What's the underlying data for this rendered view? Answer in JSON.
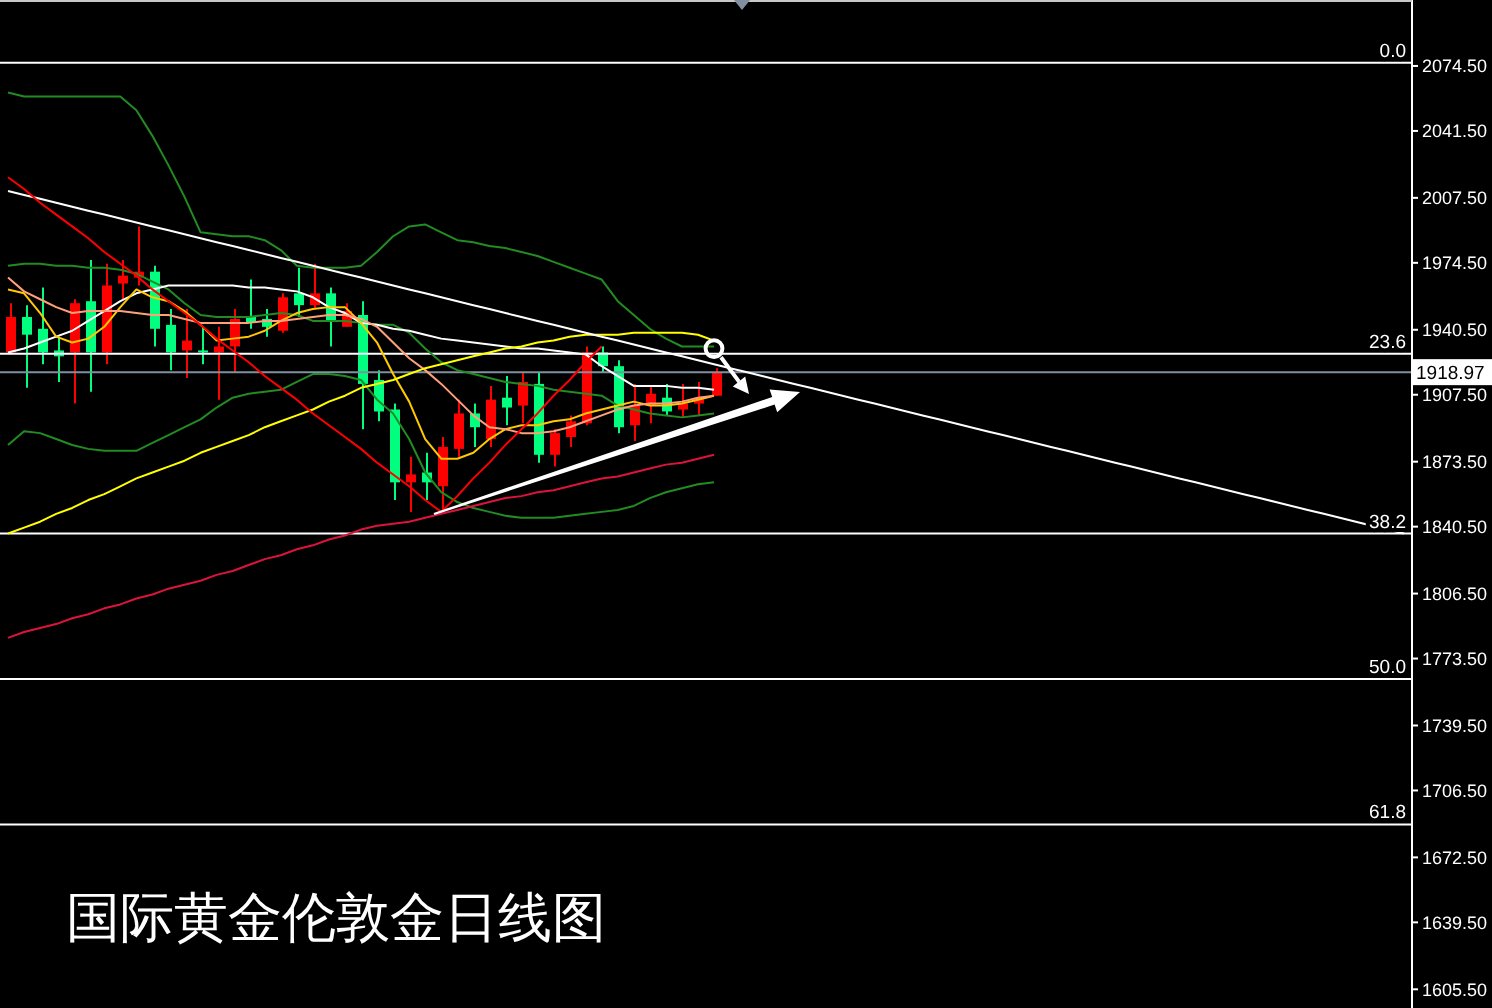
{
  "chart_data": {
    "type": "candlestick",
    "title": "国际黄金伦敦金日线图",
    "categories": [
      null,
      null,
      null,
      null,
      null,
      null,
      null,
      null,
      null,
      null,
      null,
      null,
      null,
      null,
      null,
      null,
      null,
      null,
      null,
      null,
      null,
      null,
      null,
      null,
      null,
      null,
      null,
      null,
      null,
      null,
      null,
      null,
      null,
      null,
      null,
      null,
      null,
      null,
      null,
      null,
      null,
      null,
      null,
      null,
      null,
      null,
      null,
      null,
      null,
      null,
      null,
      null,
      null,
      null,
      null,
      null,
      null,
      null,
      null,
      null,
      null,
      null,
      null,
      null,
      null,
      null,
      null,
      null,
      null,
      null,
      null,
      null,
      null,
      null,
      null,
      null,
      null,
      null,
      null,
      null,
      null,
      null,
      null,
      null,
      null,
      null,
      null,
      null
    ],
    "ohlc": [
      [
        1929,
        1954,
        1928,
        1947
      ],
      [
        1947,
        1953,
        1911,
        1938
      ],
      [
        1941,
        1962,
        1923,
        1929
      ],
      [
        1930,
        1937,
        1914,
        1927
      ],
      [
        1929,
        1956,
        1903,
        1954
      ],
      [
        1955,
        1976,
        1909,
        1929
      ],
      [
        1929,
        1974,
        1923,
        1963
      ],
      [
        1964,
        1976,
        1956,
        1968
      ],
      [
        1967,
        1993,
        1963,
        1970
      ],
      [
        1970,
        1973,
        1932,
        1941
      ],
      [
        1943,
        1951,
        1920,
        1929
      ],
      [
        1930,
        1951,
        1916,
        1935
      ],
      [
        1930,
        1942,
        1923,
        1929
      ],
      [
        1929,
        1942,
        1905,
        1932
      ],
      [
        1932,
        1951,
        1919,
        1946
      ],
      [
        1947,
        1966,
        1941,
        1944
      ],
      [
        1946,
        1951,
        1937,
        1942
      ],
      [
        1940,
        1959,
        1939,
        1957
      ],
      [
        1959,
        1972,
        1947,
        1953
      ],
      [
        1953,
        1974,
        1951,
        1959
      ],
      [
        1959,
        1962,
        1932,
        1945
      ],
      [
        1942,
        1954,
        1942,
        1950
      ],
      [
        1948,
        1955,
        1890,
        1913
      ],
      [
        1915,
        1920,
        1894,
        1899
      ],
      [
        1900,
        1903,
        1854,
        1863
      ],
      [
        1863,
        1876,
        1848,
        1867
      ],
      [
        1868,
        1878,
        1854,
        1863
      ],
      [
        1861,
        1886,
        1848,
        1881
      ],
      [
        1880,
        1905,
        1876,
        1898
      ],
      [
        1898,
        1903,
        1881,
        1891
      ],
      [
        1885,
        1912,
        1881,
        1905
      ],
      [
        1906,
        1917,
        1892,
        1901
      ],
      [
        1902,
        1919,
        1893,
        1914
      ],
      [
        1913,
        1919,
        1873,
        1877
      ],
      [
        1877,
        1890,
        1871,
        1888
      ],
      [
        1886,
        1897,
        1881,
        1894
      ],
      [
        1893,
        1932,
        1892,
        1929
      ],
      [
        1929,
        1932,
        1919,
        1922
      ],
      [
        1922,
        1925,
        1888,
        1891
      ],
      [
        1892,
        1913,
        1884,
        1902
      ],
      [
        1902,
        1912,
        1893,
        1908
      ],
      [
        1906,
        1913,
        1897,
        1899
      ],
      [
        1900,
        1913,
        1896,
        1903
      ],
      [
        1903,
        1914,
        1897,
        1906
      ],
      [
        1907,
        1921,
        1907,
        1918.97
      ],
      null,
      null,
      null,
      null,
      null,
      null,
      null,
      null,
      null,
      null,
      null,
      null,
      null,
      null,
      null,
      null,
      null,
      null,
      null,
      null,
      null,
      null,
      null,
      null,
      null,
      null,
      null,
      null,
      null,
      null,
      null,
      null,
      null,
      null,
      null,
      null,
      null,
      null,
      null,
      null,
      null,
      null,
      null
    ],
    "colors": [
      "#ff0000",
      "#00ff7f",
      "#00ff7f",
      "#00ff7f",
      "#ff0000",
      "#00ff7f",
      "#ff0000",
      "#ff0000",
      "#ff0000",
      "#00ff7f",
      "#00ff7f",
      "#ff0000",
      "#00ff7f",
      "#ff0000",
      "#ff0000",
      "#00ff7f",
      "#00ff7f",
      "#ff0000",
      "#00ff7f",
      "#ff0000",
      "#00ff7f",
      "#ff0000",
      "#00ff7f",
      "#00ff7f",
      "#00ff7f",
      "#ff0000",
      "#00ff7f",
      "#ff0000",
      "#ff0000",
      "#00ff7f",
      "#ff0000",
      "#00ff7f",
      "#ff0000",
      "#00ff7f",
      "#ff0000",
      "#ff0000",
      "#ff0000",
      "#00ff7f",
      "#00ff7f",
      "#ff0000",
      "#ff0000",
      "#00ff7f",
      "#ff0000",
      "#ff0000",
      "#ff0000",
      null,
      null,
      null,
      null,
      null,
      null,
      null,
      null,
      null,
      null,
      null,
      null,
      null,
      null,
      null,
      null,
      null,
      null,
      null,
      null,
      null,
      null,
      null,
      null,
      null,
      null,
      null,
      null,
      null,
      null,
      null,
      null,
      null,
      null,
      null,
      null,
      null,
      null,
      null,
      null,
      null,
      null,
      null
    ],
    "series": [
      {
        "type": "line",
        "color": "#228b22",
        "values": [
          2061,
          2059,
          2059,
          2059,
          2059,
          2059,
          2059,
          2059,
          2052,
          2039,
          2024,
          2008,
          1990,
          1989,
          1988,
          1988,
          1986,
          1981,
          1973,
          1972,
          1972,
          1972,
          1973,
          1980,
          1988,
          1993,
          1994,
          1990,
          1986,
          1985,
          1983,
          1982,
          1980,
          1978,
          1975,
          1972,
          1969,
          1966,
          1955,
          1948,
          1941,
          1936,
          1932,
          1932,
          1932,
          null,
          null,
          null,
          null,
          null,
          null,
          null,
          null,
          null,
          null,
          null,
          null,
          null,
          null,
          null,
          null,
          null,
          null,
          null,
          null,
          null,
          null,
          null,
          null,
          null,
          null,
          null,
          null,
          null,
          null,
          null,
          null,
          null,
          null,
          null,
          null,
          null,
          null,
          null,
          null,
          null,
          null,
          null
        ]
      },
      {
        "type": "line",
        "color": "#228b22",
        "values": [
          1973,
          1974,
          1974,
          1973,
          1973,
          1972,
          1972,
          1971,
          1969,
          1965,
          1961,
          1954,
          1948,
          1947,
          1947,
          1947,
          1948,
          1949,
          1948,
          1945,
          1945,
          1945,
          1944,
          1943,
          1943,
          1939,
          1931,
          1924,
          1920,
          1918,
          1916,
          1914,
          1913,
          1912,
          1910,
          1909,
          1908,
          1907,
          1902,
          1900,
          1898,
          1897,
          1896,
          1897,
          1898,
          null,
          null,
          null,
          null,
          null,
          null,
          null,
          null,
          null,
          null,
          null,
          null,
          null,
          null,
          null,
          null,
          null,
          null,
          null,
          null,
          null,
          null,
          null,
          null,
          null,
          null,
          null,
          null,
          null,
          null,
          null,
          null,
          null,
          null,
          null,
          null,
          null,
          null,
          null,
          null,
          null,
          null,
          null
        ]
      },
      {
        "type": "line",
        "color": "#228b22",
        "values": [
          1882,
          1889,
          1888,
          1885,
          1882,
          1880,
          1879,
          1879,
          1879,
          1883,
          1887,
          1891,
          1895,
          1901,
          1906,
          1908,
          1909,
          1910,
          1914,
          1918,
          1918,
          1917,
          1915,
          1905,
          1898,
          1885,
          1868,
          1858,
          1853,
          1850,
          1848,
          1846,
          1845,
          1845,
          1845,
          1846,
          1847,
          1848,
          1849,
          1851,
          1855,
          1858,
          1860,
          1862,
          1863,
          null,
          null,
          null,
          null,
          null,
          null,
          null,
          null,
          null,
          null,
          null,
          null,
          null,
          null,
          null,
          null,
          null,
          null,
          null,
          null,
          null,
          null,
          null,
          null,
          null,
          null,
          null,
          null,
          null,
          null,
          null,
          null,
          null,
          null,
          null,
          null,
          null,
          null,
          null,
          null,
          null,
          null,
          null
        ]
      },
      {
        "type": "line",
        "color": "#ffffff",
        "values": [
          1929,
          1931,
          1934,
          1937,
          1940,
          1945,
          1950,
          1955,
          1959,
          1961,
          1963,
          1963,
          1963,
          1963,
          1963,
          1962,
          1962,
          1961,
          1960,
          1957,
          1952,
          1949,
          1944,
          1943,
          1941,
          1940,
          1938,
          1936,
          1935,
          1934,
          1933,
          1932,
          1931,
          1931,
          1930,
          1929,
          1928,
          1922,
          1917,
          1912,
          1912,
          1912,
          1911,
          1911,
          1910,
          null,
          null,
          null,
          null,
          null,
          null,
          null,
          null,
          null,
          null,
          null,
          null,
          null,
          null,
          null,
          null,
          null,
          null,
          null,
          null,
          null,
          null,
          null,
          null,
          null,
          null,
          null,
          null,
          null,
          null,
          null,
          null,
          null,
          null,
          null,
          null,
          null,
          null,
          null,
          null,
          null,
          null,
          null
        ]
      },
      {
        "type": "line",
        "color": "#ffc800",
        "values": [
          1961,
          1959,
          1949,
          1937,
          1934,
          1936,
          1942,
          1952,
          1961,
          1957,
          1955,
          1950,
          1943,
          1935,
          1936,
          1937,
          1940,
          1945,
          1949,
          1951,
          1952,
          1952,
          1944,
          1934,
          1918,
          1904,
          1885,
          1875,
          1875,
          1878,
          1885,
          1890,
          1892,
          1892,
          1894,
          1895,
          1898,
          1900,
          1902,
          1904,
          1902,
          1902,
          1903,
          1905,
          1907,
          null,
          null,
          null,
          null,
          null,
          null,
          null,
          null,
          null,
          null,
          null,
          null,
          null,
          null,
          null,
          null,
          null,
          null,
          null,
          null,
          null,
          null,
          null,
          null,
          null,
          null,
          null,
          null,
          null,
          null,
          null,
          null,
          null,
          null,
          null,
          null,
          null,
          null,
          null,
          null,
          null,
          null,
          null
        ]
      },
      {
        "type": "line",
        "color": "#ffa07a",
        "values": [
          1967,
          1960,
          1956,
          1952,
          1949,
          1950,
          1950,
          1950,
          1949,
          1948,
          1948,
          1946,
          1944,
          1944,
          1944,
          1944,
          1945,
          1945,
          1946,
          1947,
          1948,
          1948,
          1946,
          1942,
          1934,
          1926,
          1920,
          1913,
          1905,
          1897,
          1891,
          1890,
          1888,
          1888,
          1889,
          1891,
          1894,
          1897,
          1900,
          1902,
          1903,
          1903,
          1904,
          1906,
          1907,
          null,
          null,
          null,
          null,
          null,
          null,
          null,
          null,
          null,
          null,
          null,
          null,
          null,
          null,
          null,
          null,
          null,
          null,
          null,
          null,
          null,
          null,
          null,
          null,
          null,
          null,
          null,
          null,
          null,
          null,
          null,
          null,
          null,
          null,
          null,
          null,
          null,
          null,
          null,
          null,
          null,
          null,
          null
        ]
      },
      {
        "type": "line",
        "color": "#ffff00",
        "values": [
          1837,
          1840,
          1843,
          1847,
          1850,
          1854,
          1857,
          1861,
          1865,
          1868,
          1871,
          1874,
          1878,
          1881,
          1884,
          1887,
          1891,
          1894,
          1897,
          1900,
          1904,
          1907,
          1911,
          1913,
          1915,
          1918,
          1921,
          1923,
          1925,
          1927,
          1929,
          1931,
          1932,
          1934,
          1935,
          1937,
          1938,
          1938,
          1938,
          1939,
          1939,
          1939,
          1939,
          1938,
          1935,
          null,
          null,
          null,
          null,
          null,
          null,
          null,
          null,
          null,
          null,
          null,
          null,
          null,
          null,
          null,
          null,
          null,
          null,
          null,
          null,
          null,
          null,
          null,
          null,
          null,
          null,
          null,
          null,
          null,
          null,
          null,
          null,
          null,
          null,
          null,
          null,
          null,
          null,
          null,
          null,
          null,
          null,
          null
        ]
      },
      {
        "type": "line",
        "color": "#dc143c",
        "values": [
          1784,
          1787,
          1789,
          1791,
          1794,
          1796,
          1799,
          1801,
          1804,
          1806,
          1809,
          1811,
          1813,
          1816,
          1818,
          1821,
          1824,
          1826,
          1829,
          1831,
          1834,
          1836,
          1839,
          1841,
          1842,
          1843,
          1845,
          1847,
          1849,
          1851,
          1853,
          1855,
          1856,
          1858,
          1859,
          1861,
          1863,
          1865,
          1866,
          1868,
          1870,
          1872,
          1873,
          1875,
          1877,
          null,
          null,
          null,
          null,
          null,
          null,
          null,
          null,
          null,
          null,
          null,
          null,
          null,
          null,
          null,
          null,
          null,
          null,
          null,
          null,
          null,
          null,
          null,
          null,
          null,
          null,
          null,
          null,
          null,
          null,
          null,
          null,
          null,
          null,
          null,
          null,
          null,
          null,
          null,
          null,
          null,
          null,
          null
        ]
      },
      {
        "type": "line",
        "color": "#ffffff",
        "values": [
          2011,
          2009,
          2007,
          2005,
          2003,
          2001,
          1999,
          1997,
          1995,
          1993,
          1991,
          1989,
          1987,
          1985,
          1983,
          1981,
          1979,
          1977,
          1975,
          1973,
          1971,
          1969,
          1967,
          1965,
          1963,
          1961,
          1959,
          1957,
          1955,
          1953,
          1951,
          1949,
          1947,
          1945,
          1943,
          1941,
          1939,
          1937,
          1935,
          1933,
          1931,
          1929,
          1927,
          1925,
          1923,
          1921,
          1919,
          1917,
          1915,
          1913,
          1911,
          1909,
          1907,
          1905,
          1903,
          1901,
          1899,
          1897,
          1895,
          1893,
          1891,
          1889,
          1887,
          1885,
          1883,
          1881,
          1879,
          1877,
          1875,
          1873,
          1871,
          1869,
          1867,
          1865,
          1863,
          1861,
          1859,
          1857,
          1855,
          1853,
          1851,
          1849,
          1847,
          1845,
          1843,
          1841,
          1839,
          1837
        ]
      },
      {
        "type": "line",
        "color": "#ff0000",
        "values": [
          2018,
          2012,
          2005,
          1999,
          1993,
          1987,
          1980,
          1974,
          1968,
          1961,
          1955,
          1949,
          1943,
          1936,
          1930,
          1924,
          1917,
          1911,
          1905,
          1898,
          1892,
          1886,
          1880,
          1873,
          1867,
          1861,
          1854,
          1848,
          null,
          null,
          null,
          null,
          null,
          null,
          null,
          null,
          null,
          null,
          null,
          null,
          null,
          null,
          null,
          null,
          null,
          null,
          null,
          null,
          null,
          null,
          null,
          null,
          null,
          null,
          null,
          null,
          null,
          null,
          null,
          null,
          null,
          null,
          null,
          null,
          null,
          null,
          null,
          null,
          null,
          null,
          null,
          null,
          null,
          null,
          null,
          null,
          null,
          null,
          null,
          null,
          null,
          null,
          null,
          null,
          null,
          null,
          null,
          null
        ]
      },
      {
        "type": "line",
        "color": "#ff0000",
        "values": [
          null,
          null,
          null,
          null,
          null,
          null,
          null,
          null,
          null,
          null,
          null,
          null,
          null,
          null,
          null,
          null,
          null,
          null,
          null,
          null,
          null,
          null,
          null,
          null,
          null,
          null,
          null,
          1848,
          1856,
          1865,
          1873,
          1882,
          1890,
          1898,
          1907,
          1915,
          1924,
          1932,
          null,
          null,
          null,
          null,
          null,
          null,
          null,
          null,
          null,
          null,
          null,
          null,
          null,
          null,
          null,
          null,
          null,
          null,
          null,
          null,
          null,
          null,
          null,
          null,
          null,
          null,
          null,
          null,
          null,
          null,
          null,
          null,
          null,
          null,
          null,
          null,
          null,
          null,
          null,
          null,
          null,
          null,
          null,
          null,
          null,
          null,
          null,
          null,
          null,
          null
        ]
      }
    ],
    "ylim": [
      1596,
      2108
    ],
    "yticks": [
      {
        "value": 2074.5,
        "label": "2074.50"
      },
      {
        "value": 2041.5,
        "label": "2041.50"
      },
      {
        "value": 2007.5,
        "label": "2007.50"
      },
      {
        "value": 1974.5,
        "label": "1974.50"
      },
      {
        "value": 1940.5,
        "label": "1940.50"
      },
      {
        "value": 1907.5,
        "label": "1907.50"
      },
      {
        "value": 1873.5,
        "label": "1873.50"
      },
      {
        "value": 1840.5,
        "label": "1840.50"
      },
      {
        "value": 1806.5,
        "label": "1806.50"
      },
      {
        "value": 1773.5,
        "label": "1773.50"
      },
      {
        "value": 1739.5,
        "label": "1739.50"
      },
      {
        "value": 1706.5,
        "label": "1706.50"
      },
      {
        "value": 1672.5,
        "label": "1672.50"
      },
      {
        "value": 1639.5,
        "label": "1639.50"
      },
      {
        "value": 1605.5,
        "label": "1605.50"
      }
    ],
    "y2lim": [
      76.7,
      -5.1
    ],
    "y2ticks": [
      {
        "value": 0,
        "label": "0.0"
      },
      23.6,
      38.2,
      {
        "value": 50,
        "label": "50.0"
      },
      61.8
    ],
    "ref_lines": [
      {
        "axis": "y2",
        "value": 0,
        "color": "#ffffff"
      },
      {
        "axis": "y2",
        "value": 23.6,
        "color": "#ffffff"
      },
      {
        "axis": "y2",
        "value": 38.2,
        "color": "#ffffff"
      },
      {
        "axis": "y2",
        "value": 50,
        "color": "#ffffff"
      },
      {
        "axis": "y2",
        "value": 61.8,
        "color": "#ffffff"
      },
      {
        "axis": "y",
        "value": 1918.97,
        "label": "1918.97",
        "color": "#8090a0"
      }
    ],
    "tick_labels": "y"
  }
}
